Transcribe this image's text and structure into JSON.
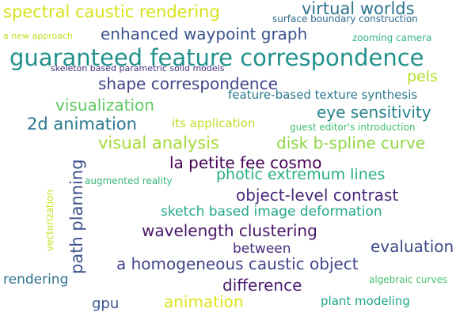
{
  "background": "#ffffff",
  "words": [
    {
      "text": "spectral caustic rendering",
      "color": "#d8e219"
    },
    {
      "text": "virtual worlds",
      "color": "#2c728e"
    },
    {
      "text": "surface boundary construction",
      "color": "#31688e"
    },
    {
      "text": "a new approach",
      "color": "#c2df23"
    },
    {
      "text": "enhanced waypoint graph",
      "color": "#3b528b"
    },
    {
      "text": "zooming camera",
      "color": "#2fb47c"
    },
    {
      "text": "guaranteed feature correspondence",
      "color": "#21918c"
    },
    {
      "text": "skeleton based parametric solid models",
      "color": "#46337e"
    },
    {
      "text": "pels",
      "color": "#b5de2b"
    },
    {
      "text": "shape correspondence",
      "color": "#414487"
    },
    {
      "text": "feature-based texture synthesis",
      "color": "#2a788e"
    },
    {
      "text": "visualization",
      "color": "#5ec962"
    },
    {
      "text": "eye sensitivity",
      "color": "#26828e"
    },
    {
      "text": "2d animation",
      "color": "#2a788e"
    },
    {
      "text": "its application",
      "color": "#bddf26"
    },
    {
      "text": "guest editor's introduction",
      "color": "#3fbc73"
    },
    {
      "text": "path planning",
      "color": "#3b528b"
    },
    {
      "text": "visual analysis",
      "color": "#a5db36"
    },
    {
      "text": "disk b-spline curve",
      "color": "#8fd744"
    },
    {
      "text": "la petite fee cosmo",
      "color": "#440154"
    },
    {
      "text": "photic extremum lines",
      "color": "#28ae80"
    },
    {
      "text": "vectorization",
      "color": "#c8e020"
    },
    {
      "text": "augmented reality",
      "color": "#35b779"
    },
    {
      "text": "object-level contrast",
      "color": "#482878"
    },
    {
      "text": "sketch based image deformation",
      "color": "#22a884"
    },
    {
      "text": "wavelength clustering",
      "color": "#481467"
    },
    {
      "text": "between",
      "color": "#472d7b"
    },
    {
      "text": "evaluation",
      "color": "#3e4a89"
    },
    {
      "text": "a homogeneous caustic object",
      "color": "#414487"
    },
    {
      "text": "rendering",
      "color": "#2c728e"
    },
    {
      "text": "difference",
      "color": "#481a6c"
    },
    {
      "text": "algebraic curves",
      "color": "#4ac16d"
    },
    {
      "text": "gpu",
      "color": "#39568c"
    },
    {
      "text": "animation",
      "color": "#dde318"
    },
    {
      "text": "plant modeling",
      "color": "#20a386"
    }
  ]
}
